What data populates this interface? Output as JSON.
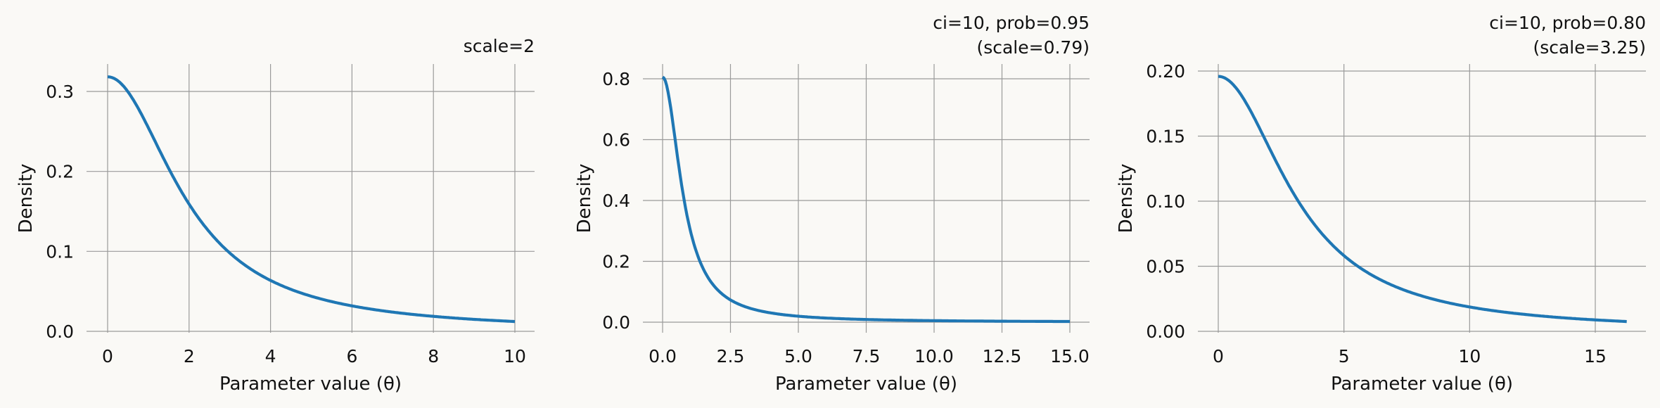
{
  "colors": {
    "background": "#faf9f6",
    "line": "#1f77b4",
    "grid": "#9a9a9a"
  },
  "chart_data": [
    {
      "type": "line",
      "distribution": "half-cauchy",
      "scale": 2,
      "title_lines": [
        "scale=2"
      ],
      "xlabel": "Parameter value (θ)",
      "ylabel": "Density",
      "x_range": [
        0,
        10
      ],
      "xlim": [
        -0.5,
        10.5
      ],
      "ylim": [
        0,
        0.335
      ],
      "xticks": [
        0,
        2,
        4,
        6,
        8,
        10
      ],
      "xtick_labels": [
        "0",
        "2",
        "4",
        "6",
        "8",
        "10"
      ],
      "yticks": [
        0,
        0.1,
        0.2,
        0.3
      ],
      "ytick_labels": [
        "0.0",
        "0.1",
        "0.2",
        "0.3"
      ],
      "sample_points": {
        "x": [
          0,
          2,
          4,
          6,
          8,
          10
        ],
        "y": [
          0.318,
          0.159,
          0.064,
          0.032,
          0.019,
          0.012
        ]
      },
      "grid": true
    },
    {
      "type": "line",
      "distribution": "half-cauchy",
      "scale": 0.79,
      "title_lines": [
        "ci=10, prob=0.95",
        "(scale=0.79)"
      ],
      "xlabel": "Parameter value (θ)",
      "ylabel": "Density",
      "x_range": [
        0,
        15
      ],
      "xlim": [
        -0.75,
        15.75
      ],
      "ylim": [
        -0.04,
        0.85
      ],
      "xticks": [
        0,
        2.5,
        5,
        7.5,
        10,
        12.5,
        15
      ],
      "xtick_labels": [
        "0.0",
        "2.5",
        "5.0",
        "7.5",
        "10.0",
        "12.5",
        "15.0"
      ],
      "yticks": [
        0,
        0.2,
        0.4,
        0.6,
        0.8
      ],
      "ytick_labels": [
        "0.0",
        "0.2",
        "0.4",
        "0.6",
        "0.8"
      ],
      "sample_points": {
        "x": [
          0,
          1,
          2.5,
          5,
          10,
          15
        ],
        "y": [
          0.806,
          0.309,
          0.073,
          0.02,
          0.005,
          0.002
        ]
      },
      "grid": true
    },
    {
      "type": "line",
      "distribution": "half-cauchy",
      "scale": 3.25,
      "title_lines": [
        "ci=10, prob=0.80",
        "(scale=3.25)"
      ],
      "xlabel": "Parameter value (θ)",
      "ylabel": "Density",
      "x_range": [
        0,
        16.25
      ],
      "xlim": [
        -0.8,
        17.0
      ],
      "ylim": [
        0,
        0.205
      ],
      "xticks": [
        0,
        5,
        10,
        15
      ],
      "xtick_labels": [
        "0",
        "5",
        "10",
        "15"
      ],
      "yticks": [
        0,
        0.05,
        0.1,
        0.15,
        0.2
      ],
      "ytick_labels": [
        "0.00",
        "0.05",
        "0.10",
        "0.15",
        "0.20"
      ],
      "sample_points": {
        "x": [
          0,
          5,
          10,
          15,
          16.25
        ],
        "y": [
          0.196,
          0.058,
          0.019,
          0.009,
          0.008
        ]
      },
      "grid": true
    }
  ]
}
